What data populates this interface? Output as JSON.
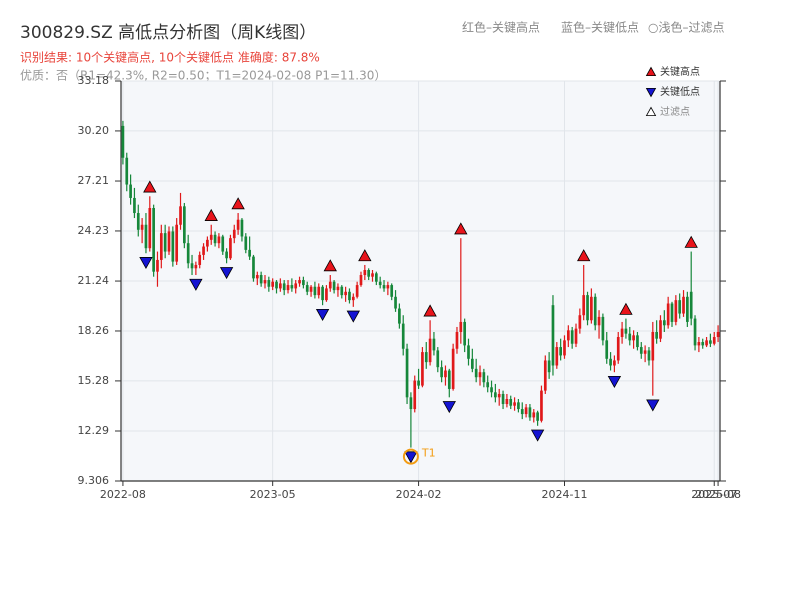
{
  "chart_data": {
    "type": "candlestick",
    "title": "300829.SZ 高低点分析图（周K线图）",
    "subtitle": "识别结果: 10个关键高点, 10个关键低点  准确度: 87.8%",
    "quality_note": "优质：否（R1=42.3%, R2=0.50；T1=2024-02-08 P1=11.30）",
    "header_legend": [
      "红色–关键高点",
      "蓝色–关键低点",
      "○浅色–过滤点"
    ],
    "up_color": "#e0191a",
    "down_color": "#16873a",
    "ylim": [
      9.306,
      33.18
    ],
    "yticks": [
      9.306,
      12.29,
      15.28,
      18.26,
      21.24,
      24.23,
      27.21,
      {
        "value": 30.2,
        "label": "30.20"
      },
      33.18
    ],
    "grid": true,
    "categories": [
      "2022-08",
      null,
      null,
      null,
      null,
      null,
      null,
      null,
      null,
      null,
      null,
      null,
      null,
      null,
      null,
      null,
      null,
      null,
      null,
      null,
      null,
      null,
      null,
      null,
      null,
      null,
      null,
      null,
      null,
      null,
      null,
      null,
      null,
      null,
      null,
      null,
      null,
      null,
      null,
      "2023-05",
      null,
      null,
      null,
      null,
      null,
      null,
      null,
      null,
      null,
      null,
      null,
      null,
      null,
      null,
      null,
      null,
      null,
      null,
      null,
      null,
      null,
      null,
      null,
      null,
      null,
      null,
      null,
      null,
      null,
      null,
      null,
      null,
      null,
      null,
      null,
      null,
      null,
      "2024-02",
      null,
      null,
      null,
      null,
      null,
      null,
      null,
      null,
      null,
      null,
      null,
      null,
      null,
      null,
      null,
      null,
      null,
      null,
      null,
      null,
      null,
      null,
      null,
      null,
      null,
      null,
      null,
      null,
      null,
      null,
      null,
      null,
      null,
      null,
      null,
      null,
      null,
      "2024-11",
      null,
      null,
      null,
      null,
      null,
      null,
      null,
      null,
      null,
      null,
      null,
      null,
      null,
      null,
      null,
      null,
      null,
      null,
      null,
      null,
      null,
      null,
      null,
      null,
      null,
      null,
      null,
      null,
      null,
      null,
      null,
      null,
      null,
      null,
      null,
      null,
      null,
      null,
      "2025-07",
      "2025-08"
    ],
    "ohlc": [
      [
        30.5,
        30.8,
        28.2,
        28.6
      ],
      [
        28.6,
        28.9,
        26.6,
        27.0
      ],
      [
        27.0,
        27.6,
        25.8,
        26.2
      ],
      [
        26.2,
        26.8,
        25.0,
        25.3
      ],
      [
        25.3,
        25.8,
        23.9,
        24.3
      ],
      [
        24.3,
        25.0,
        23.5,
        24.6
      ],
      [
        24.6,
        25.3,
        22.9,
        23.2
      ],
      [
        23.2,
        26.3,
        23.0,
        25.6
      ],
      [
        25.6,
        25.8,
        21.5,
        21.8
      ],
      [
        21.8,
        23.0,
        20.9,
        22.5
      ],
      [
        22.5,
        24.6,
        22.0,
        24.1
      ],
      [
        24.1,
        24.6,
        22.6,
        23.0
      ],
      [
        23.0,
        24.5,
        22.8,
        24.2
      ],
      [
        24.2,
        24.5,
        22.1,
        22.4
      ],
      [
        22.4,
        25.0,
        22.2,
        24.6
      ],
      [
        24.6,
        26.5,
        24.3,
        25.7
      ],
      [
        25.7,
        25.9,
        23.2,
        23.5
      ],
      [
        23.5,
        24.0,
        22.0,
        22.3
      ],
      [
        22.3,
        22.8,
        21.6,
        22.0
      ],
      [
        22.0,
        22.4,
        21.6,
        22.2
      ],
      [
        22.2,
        23.0,
        22.0,
        22.8
      ],
      [
        22.8,
        23.5,
        22.5,
        23.3
      ],
      [
        23.3,
        23.9,
        23.0,
        23.7
      ],
      [
        23.7,
        24.6,
        23.4,
        24.0
      ],
      [
        24.0,
        24.2,
        23.3,
        23.5
      ],
      [
        23.5,
        24.1,
        23.2,
        23.9
      ],
      [
        23.9,
        24.0,
        22.8,
        23.0
      ],
      [
        23.0,
        23.2,
        22.3,
        22.6
      ],
      [
        22.6,
        24.0,
        22.5,
        23.8
      ],
      [
        23.8,
        24.6,
        23.5,
        24.3
      ],
      [
        24.3,
        25.3,
        24.0,
        24.9
      ],
      [
        24.9,
        25.0,
        23.6,
        23.9
      ],
      [
        23.9,
        24.1,
        22.9,
        23.1
      ],
      [
        23.1,
        23.9,
        22.5,
        22.7
      ],
      [
        22.7,
        22.8,
        21.2,
        21.4
      ],
      [
        21.4,
        21.8,
        21.0,
        21.6
      ],
      [
        21.6,
        21.8,
        20.9,
        21.1
      ],
      [
        21.1,
        21.6,
        20.8,
        21.3
      ],
      [
        21.3,
        21.5,
        20.6,
        20.9
      ],
      [
        20.9,
        21.4,
        20.7,
        21.2
      ],
      [
        21.2,
        21.3,
        20.5,
        20.8
      ],
      [
        20.8,
        21.4,
        20.6,
        21.1
      ],
      [
        21.1,
        21.3,
        20.4,
        20.7
      ],
      [
        20.7,
        21.3,
        20.5,
        21.0
      ],
      [
        21.0,
        21.4,
        20.6,
        20.8
      ],
      [
        20.8,
        21.3,
        20.5,
        21.1
      ],
      [
        21.1,
        21.5,
        20.9,
        21.3
      ],
      [
        21.3,
        21.5,
        20.8,
        21.0
      ],
      [
        21.0,
        21.2,
        20.4,
        20.6
      ],
      [
        20.6,
        21.0,
        20.3,
        20.9
      ],
      [
        20.9,
        21.2,
        20.2,
        20.4
      ],
      [
        20.4,
        21.1,
        20.2,
        20.9
      ],
      [
        20.9,
        21.0,
        19.8,
        20.1
      ],
      [
        20.1,
        21.0,
        20.0,
        20.8
      ],
      [
        20.8,
        21.6,
        20.6,
        21.2
      ],
      [
        21.2,
        21.3,
        20.5,
        20.7
      ],
      [
        20.7,
        21.1,
        20.3,
        20.9
      ],
      [
        20.9,
        21.0,
        20.2,
        20.4
      ],
      [
        20.4,
        20.9,
        20.0,
        20.6
      ],
      [
        20.6,
        20.8,
        19.9,
        20.1
      ],
      [
        20.1,
        20.5,
        19.7,
        20.3
      ],
      [
        20.3,
        21.2,
        20.2,
        21.0
      ],
      [
        21.0,
        21.8,
        20.9,
        21.6
      ],
      [
        21.6,
        22.2,
        21.3,
        21.9
      ],
      [
        21.9,
        22.0,
        21.3,
        21.5
      ],
      [
        21.5,
        21.9,
        21.2,
        21.7
      ],
      [
        21.7,
        21.8,
        21.0,
        21.2
      ],
      [
        21.2,
        21.5,
        20.8,
        21.0
      ],
      [
        21.0,
        21.3,
        20.6,
        20.8
      ],
      [
        20.8,
        21.2,
        20.4,
        21.0
      ],
      [
        21.0,
        21.1,
        20.1,
        20.3
      ],
      [
        20.3,
        20.7,
        19.4,
        19.6
      ],
      [
        19.6,
        19.9,
        18.4,
        18.7
      ],
      [
        18.7,
        19.2,
        16.8,
        17.2
      ],
      [
        17.2,
        17.5,
        13.9,
        14.3
      ],
      [
        14.3,
        14.6,
        11.3,
        13.6
      ],
      [
        13.6,
        15.6,
        13.4,
        15.3
      ],
      [
        15.3,
        16.0,
        14.8,
        15.0
      ],
      [
        15.0,
        17.3,
        14.9,
        17.0
      ],
      [
        17.0,
        17.6,
        16.0,
        16.4
      ],
      [
        16.4,
        18.9,
        16.2,
        17.8
      ],
      [
        17.8,
        18.2,
        16.8,
        17.1
      ],
      [
        17.1,
        17.3,
        15.8,
        16.1
      ],
      [
        16.1,
        16.5,
        15.2,
        15.5
      ],
      [
        15.5,
        16.2,
        15.0,
        15.9
      ],
      [
        15.9,
        16.0,
        14.3,
        14.8
      ],
      [
        14.8,
        17.5,
        14.7,
        17.2
      ],
      [
        17.2,
        18.5,
        16.9,
        18.2
      ],
      [
        18.2,
        23.8,
        17.5,
        18.8
      ],
      [
        18.8,
        19.0,
        17.0,
        17.4
      ],
      [
        17.4,
        17.8,
        16.2,
        16.6
      ],
      [
        16.6,
        17.2,
        15.8,
        16.0
      ],
      [
        16.0,
        16.6,
        15.2,
        15.5
      ],
      [
        15.5,
        16.2,
        15.0,
        15.8
      ],
      [
        15.8,
        16.0,
        14.9,
        15.2
      ],
      [
        15.2,
        15.6,
        14.6,
        14.9
      ],
      [
        14.9,
        15.3,
        14.3,
        14.6
      ],
      [
        14.6,
        15.1,
        14.0,
        14.3
      ],
      [
        14.3,
        14.8,
        13.8,
        14.5
      ],
      [
        14.5,
        14.7,
        13.6,
        13.9
      ],
      [
        13.9,
        14.5,
        13.7,
        14.2
      ],
      [
        14.2,
        14.4,
        13.6,
        13.8
      ],
      [
        13.8,
        14.3,
        13.5,
        14.0
      ],
      [
        14.0,
        14.2,
        13.4,
        13.6
      ],
      [
        13.6,
        14.0,
        13.0,
        13.3
      ],
      [
        13.3,
        13.9,
        13.1,
        13.7
      ],
      [
        13.7,
        13.9,
        12.9,
        13.1
      ],
      [
        13.1,
        13.6,
        12.8,
        13.4
      ],
      [
        13.4,
        13.5,
        12.6,
        12.9
      ],
      [
        12.9,
        15.0,
        12.8,
        14.7
      ],
      [
        14.7,
        16.8,
        14.5,
        16.5
      ],
      [
        16.5,
        17.0,
        15.4,
        15.8
      ],
      [
        19.8,
        20.4,
        15.6,
        16.2
      ],
      [
        16.2,
        17.6,
        16.0,
        17.3
      ],
      [
        17.3,
        17.8,
        16.5,
        16.8
      ],
      [
        16.8,
        18.0,
        16.6,
        17.7
      ],
      [
        17.7,
        18.6,
        17.3,
        18.3
      ],
      [
        18.3,
        18.5,
        17.2,
        17.5
      ],
      [
        17.5,
        18.7,
        17.3,
        18.4
      ],
      [
        18.4,
        19.6,
        18.1,
        19.2
      ],
      [
        19.2,
        22.2,
        18.9,
        20.4
      ],
      [
        20.4,
        20.6,
        18.6,
        18.9
      ],
      [
        18.9,
        20.8,
        18.7,
        20.3
      ],
      [
        20.3,
        20.5,
        18.3,
        18.6
      ],
      [
        18.6,
        19.5,
        17.8,
        19.1
      ],
      [
        19.1,
        19.3,
        17.4,
        17.7
      ],
      [
        17.7,
        18.2,
        16.3,
        16.6
      ],
      [
        16.6,
        17.0,
        15.9,
        16.2
      ],
      [
        16.2,
        16.8,
        15.8,
        16.5
      ],
      [
        16.5,
        18.2,
        16.3,
        17.9
      ],
      [
        17.9,
        18.8,
        17.5,
        18.4
      ],
      [
        18.4,
        19.0,
        17.8,
        18.1
      ],
      [
        18.1,
        18.5,
        17.4,
        17.7
      ],
      [
        17.7,
        18.3,
        17.2,
        18.0
      ],
      [
        18.0,
        18.2,
        17.1,
        17.3
      ],
      [
        17.3,
        17.6,
        16.6,
        16.9
      ],
      [
        16.9,
        17.4,
        16.4,
        17.1
      ],
      [
        17.1,
        17.3,
        16.2,
        16.5
      ],
      [
        16.5,
        18.8,
        14.4,
        18.2
      ],
      [
        18.2,
        18.9,
        17.5,
        17.8
      ],
      [
        17.8,
        19.2,
        17.6,
        18.9
      ],
      [
        18.9,
        19.5,
        18.2,
        18.6
      ],
      [
        18.6,
        20.3,
        18.4,
        19.9
      ],
      [
        19.9,
        20.0,
        18.5,
        18.8
      ],
      [
        18.8,
        20.4,
        18.6,
        20.1
      ],
      [
        20.1,
        20.5,
        19.0,
        19.3
      ],
      [
        19.3,
        20.7,
        19.1,
        20.3
      ],
      [
        20.3,
        20.6,
        18.5,
        18.8
      ],
      [
        20.6,
        23.0,
        18.6,
        19.0
      ],
      [
        19.0,
        19.2,
        17.1,
        17.4
      ],
      [
        17.4,
        17.9,
        17.0,
        17.6
      ],
      [
        17.6,
        17.8,
        17.2,
        17.4
      ],
      [
        17.4,
        17.9,
        17.3,
        17.7
      ],
      [
        17.7,
        18.1,
        17.3,
        17.5
      ],
      [
        17.5,
        18.2,
        17.4,
        17.9
      ],
      [
        17.9,
        18.6,
        17.6,
        18.2
      ]
    ],
    "key_highs": {
      "name": "关键高点",
      "color": "#e8141b",
      "marker": "up",
      "values": [
        null,
        null,
        null,
        null,
        null,
        null,
        null,
        26.3,
        null,
        null,
        null,
        null,
        null,
        null,
        null,
        null,
        null,
        null,
        null,
        null,
        null,
        null,
        null,
        24.6,
        null,
        null,
        null,
        null,
        null,
        null,
        25.3,
        null,
        null,
        null,
        null,
        null,
        null,
        null,
        null,
        null,
        null,
        null,
        null,
        null,
        null,
        null,
        null,
        null,
        null,
        null,
        null,
        null,
        null,
        null,
        21.6,
        null,
        null,
        null,
        null,
        null,
        null,
        null,
        null,
        22.2,
        null,
        null,
        null,
        null,
        null,
        null,
        null,
        null,
        null,
        null,
        null,
        null,
        null,
        null,
        null,
        null,
        18.9,
        null,
        null,
        null,
        null,
        null,
        null,
        null,
        23.8,
        null,
        null,
        null,
        null,
        null,
        null,
        null,
        null,
        null,
        null,
        null,
        null,
        null,
        null,
        null,
        null,
        null,
        null,
        null,
        null,
        null,
        null,
        null,
        null,
        null,
        null,
        null,
        null,
        null,
        null,
        null,
        22.2,
        null,
        null,
        null,
        null,
        null,
        null,
        null,
        null,
        null,
        null,
        19.0,
        null,
        null,
        null,
        null,
        null,
        null,
        null,
        null,
        null,
        null,
        null,
        null,
        null,
        null,
        null,
        null,
        23.0,
        null,
        null,
        null,
        null,
        null,
        null,
        null
      ]
    },
    "key_lows": {
      "name": "关键低点",
      "color": "#1414d2",
      "marker": "down",
      "values": [
        null,
        null,
        null,
        null,
        null,
        null,
        22.9,
        null,
        null,
        null,
        null,
        null,
        null,
        null,
        null,
        null,
        null,
        null,
        null,
        21.6,
        null,
        null,
        null,
        null,
        null,
        null,
        null,
        22.3,
        null,
        null,
        null,
        null,
        null,
        null,
        null,
        null,
        null,
        null,
        null,
        null,
        null,
        null,
        null,
        null,
        null,
        null,
        null,
        null,
        null,
        null,
        null,
        null,
        19.8,
        null,
        null,
        null,
        null,
        null,
        null,
        null,
        19.7,
        null,
        null,
        null,
        null,
        null,
        null,
        null,
        null,
        null,
        null,
        null,
        null,
        null,
        null,
        11.3,
        null,
        null,
        null,
        null,
        null,
        null,
        null,
        null,
        null,
        14.3,
        null,
        null,
        null,
        null,
        null,
        null,
        null,
        null,
        null,
        null,
        null,
        null,
        null,
        null,
        null,
        null,
        null,
        null,
        null,
        null,
        null,
        null,
        12.6,
        null,
        null,
        null,
        null,
        null,
        null,
        null,
        null,
        null,
        null,
        null,
        null,
        null,
        null,
        null,
        null,
        null,
        null,
        null,
        15.8,
        null,
        null,
        null,
        null,
        null,
        null,
        null,
        null,
        null,
        14.4,
        null,
        null,
        null,
        null,
        null,
        null,
        null,
        null,
        null,
        null,
        null,
        null,
        null,
        null,
        null,
        null,
        null
      ]
    },
    "filtered": {
      "name": "过滤点",
      "color": "#ffffff",
      "marker": "hollow"
    },
    "t1": {
      "label": "T1",
      "value": 11.3,
      "color": "#f39c12"
    }
  }
}
